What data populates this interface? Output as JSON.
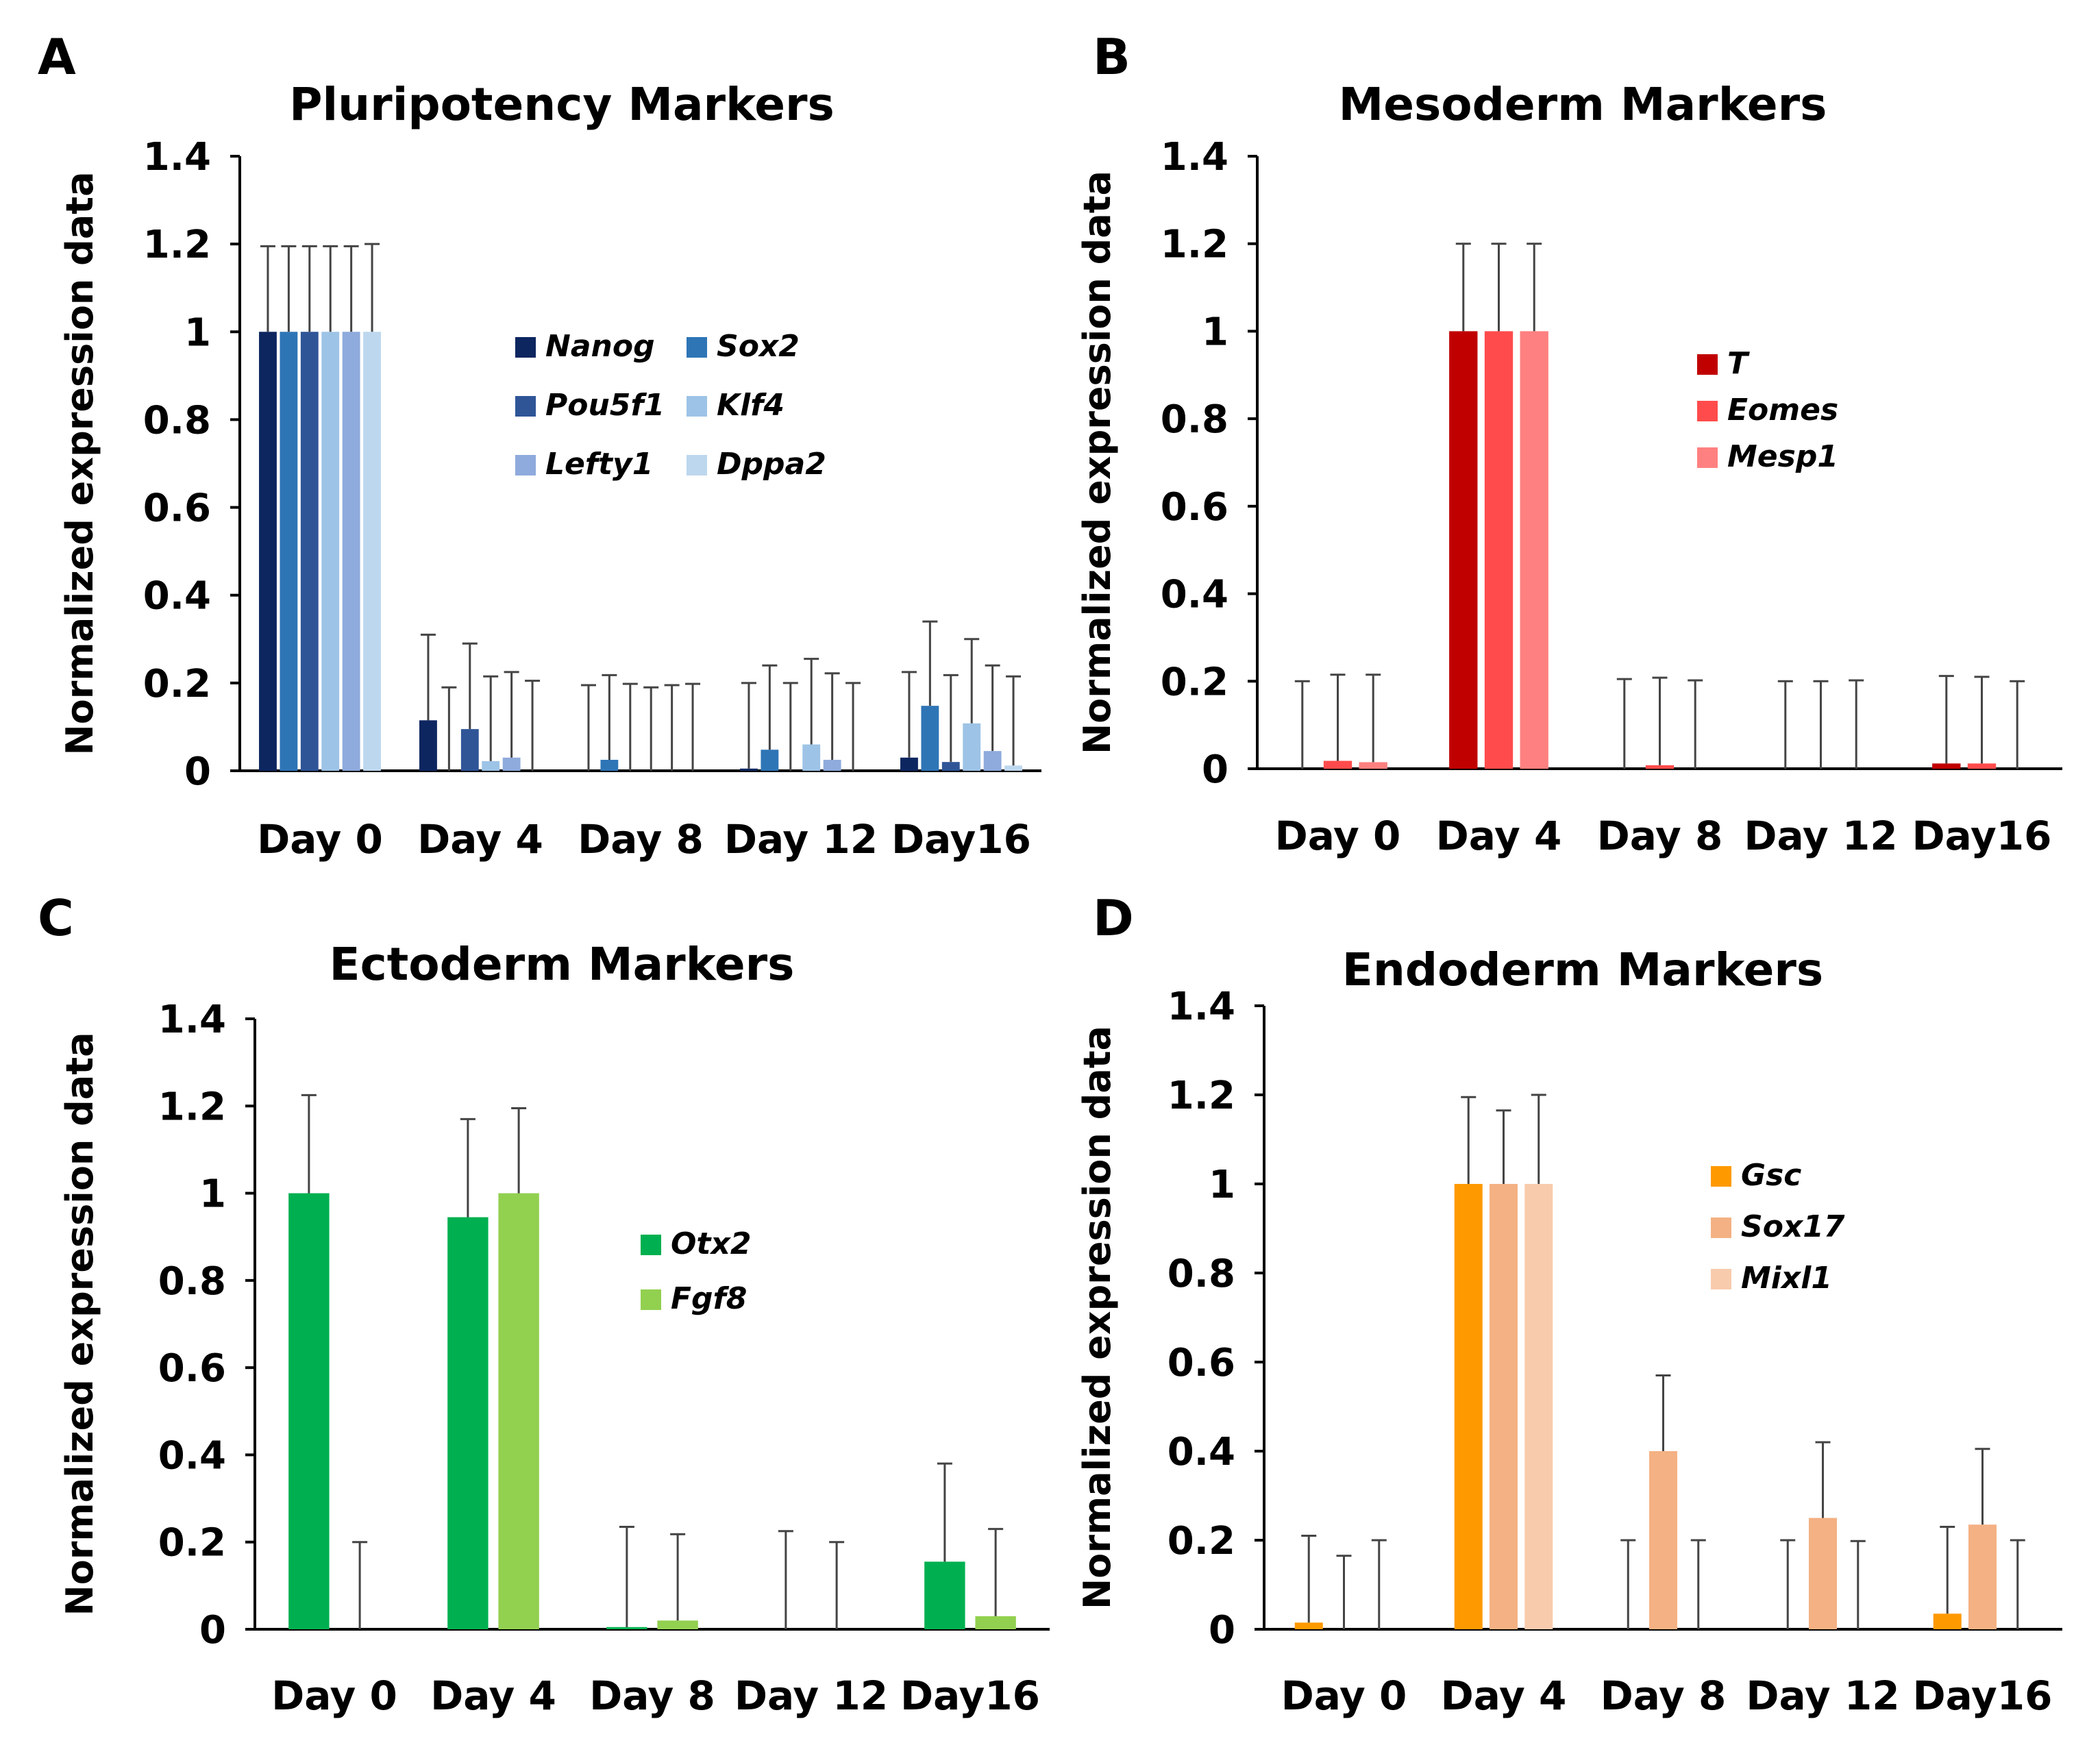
{
  "chart_data": [
    {
      "type": "bar",
      "panel_label": "A",
      "title": "Pluripotency Markers",
      "xlabel": "",
      "ylabel": "Normalized expression data",
      "ylim": [
        0,
        1.4
      ],
      "yticks": [
        "0",
        "0.2",
        "0.4",
        "0.6",
        "0.8",
        "1",
        "1.2",
        "1.4"
      ],
      "categories": [
        "Day 0",
        "Day 4",
        "Day 8",
        "Day 12",
        "Day16"
      ],
      "legend_position": "center",
      "legend_columns": 2,
      "series": [
        {
          "name": "Nanog",
          "color": "#0d2660",
          "values": [
            1.0,
            0.115,
            0.0,
            0.005,
            0.03
          ],
          "err_top": [
            1.195,
            0.31,
            0.195,
            0.2,
            0.225
          ]
        },
        {
          "name": "Sox2",
          "color": "#2e75b6",
          "values": [
            1.0,
            0.0,
            0.025,
            0.048,
            0.148
          ],
          "err_top": [
            1.195,
            0.19,
            0.218,
            0.24,
            0.34
          ]
        },
        {
          "name": "Pou5f1",
          "color": "#2f5597",
          "values": [
            1.0,
            0.095,
            0.0,
            0.0,
            0.02
          ],
          "err_top": [
            1.195,
            0.29,
            0.198,
            0.2,
            0.218
          ]
        },
        {
          "name": "Klf4",
          "color": "#9dc3e6",
          "values": [
            1.0,
            0.022,
            0.0,
            0.06,
            0.108
          ],
          "err_top": [
            1.195,
            0.215,
            0.19,
            0.255,
            0.3
          ]
        },
        {
          "name": "Lefty1",
          "color": "#8faadc",
          "values": [
            1.0,
            0.03,
            0.0,
            0.025,
            0.045
          ],
          "err_top": [
            1.195,
            0.225,
            0.195,
            0.222,
            0.24
          ]
        },
        {
          "name": "Dppa2",
          "color": "#bdd7ee",
          "values": [
            1.0,
            0.0,
            0.0,
            0.0,
            0.012
          ],
          "err_top": [
            1.2,
            0.205,
            0.198,
            0.2,
            0.215
          ]
        }
      ]
    },
    {
      "type": "bar",
      "panel_label": "B",
      "title": "Mesoderm Markers",
      "xlabel": "",
      "ylabel": "Normalized expression data",
      "ylim": [
        0,
        1.4
      ],
      "yticks": [
        "0",
        "0.2",
        "0.4",
        "0.6",
        "0.8",
        "1",
        "1.2",
        "1.4"
      ],
      "categories": [
        "Day 0",
        "Day 4",
        "Day 8",
        "Day 12",
        "Day16"
      ],
      "legend_position": "center-right",
      "legend_columns": 1,
      "series": [
        {
          "name": "T",
          "color": "#c00000",
          "values": [
            0.0,
            1.0,
            0.0,
            0.0,
            0.012
          ],
          "err_top": [
            0.2,
            1.2,
            0.205,
            0.2,
            0.212
          ]
        },
        {
          "name": "Eomes",
          "color": "#ff4b4b",
          "values": [
            0.018,
            1.0,
            0.008,
            0.0,
            0.012
          ],
          "err_top": [
            0.215,
            1.2,
            0.208,
            0.2,
            0.21
          ]
        },
        {
          "name": "Mesp1",
          "color": "#ff8080",
          "values": [
            0.015,
            1.0,
            0.0,
            0.0,
            0.0
          ],
          "err_top": [
            0.215,
            1.2,
            0.202,
            0.202,
            0.2
          ]
        }
      ]
    },
    {
      "type": "bar",
      "panel_label": "C",
      "title": "Ectoderm Markers",
      "xlabel": "",
      "ylabel": "Normalized expression data",
      "ylim": [
        0,
        1.4
      ],
      "yticks": [
        "0",
        "0.2",
        "0.4",
        "0.6",
        "0.8",
        "1",
        "1.2",
        "1.4"
      ],
      "categories": [
        "Day 0",
        "Day 4",
        "Day 8",
        "Day 12",
        "Day16"
      ],
      "legend_position": "center-right",
      "legend_columns": 1,
      "series": [
        {
          "name": "Otx2",
          "color": "#00b050",
          "values": [
            1.0,
            0.945,
            0.005,
            0.0,
            0.155
          ],
          "err_top": [
            1.225,
            1.17,
            0.235,
            0.225,
            0.38
          ]
        },
        {
          "name": "Fgf8",
          "color": "#92d050",
          "values": [
            0.0,
            1.0,
            0.02,
            0.0,
            0.03
          ],
          "err_top": [
            0.2,
            1.195,
            0.218,
            0.2,
            0.23
          ]
        }
      ]
    },
    {
      "type": "bar",
      "panel_label": "D",
      "title": "Endoderm Markers",
      "xlabel": "",
      "ylabel": "Normalized expression data",
      "ylim": [
        0,
        1.4
      ],
      "yticks": [
        "0",
        "0.2",
        "0.4",
        "0.6",
        "0.8",
        "1",
        "1.2",
        "1.4"
      ],
      "categories": [
        "Day 0",
        "Day 4",
        "Day 8",
        "Day 12",
        "Day16"
      ],
      "legend_position": "center-right",
      "legend_columns": 1,
      "series": [
        {
          "name": "Gsc",
          "color": "#ff9900",
          "values": [
            0.015,
            1.0,
            0.0,
            0.0,
            0.035
          ],
          "err_top": [
            0.21,
            1.195,
            0.2,
            0.2,
            0.23
          ]
        },
        {
          "name": "Sox17",
          "color": "#f4b183",
          "values": [
            0.0,
            1.0,
            0.4,
            0.25,
            0.235
          ],
          "err_top": [
            0.165,
            1.165,
            0.57,
            0.42,
            0.405
          ]
        },
        {
          "name": "Mixl1",
          "color": "#f8cbad",
          "values": [
            0.0,
            1.0,
            0.0,
            0.0,
            0.0
          ],
          "err_top": [
            0.2,
            1.2,
            0.2,
            0.198,
            0.2
          ]
        }
      ]
    }
  ]
}
